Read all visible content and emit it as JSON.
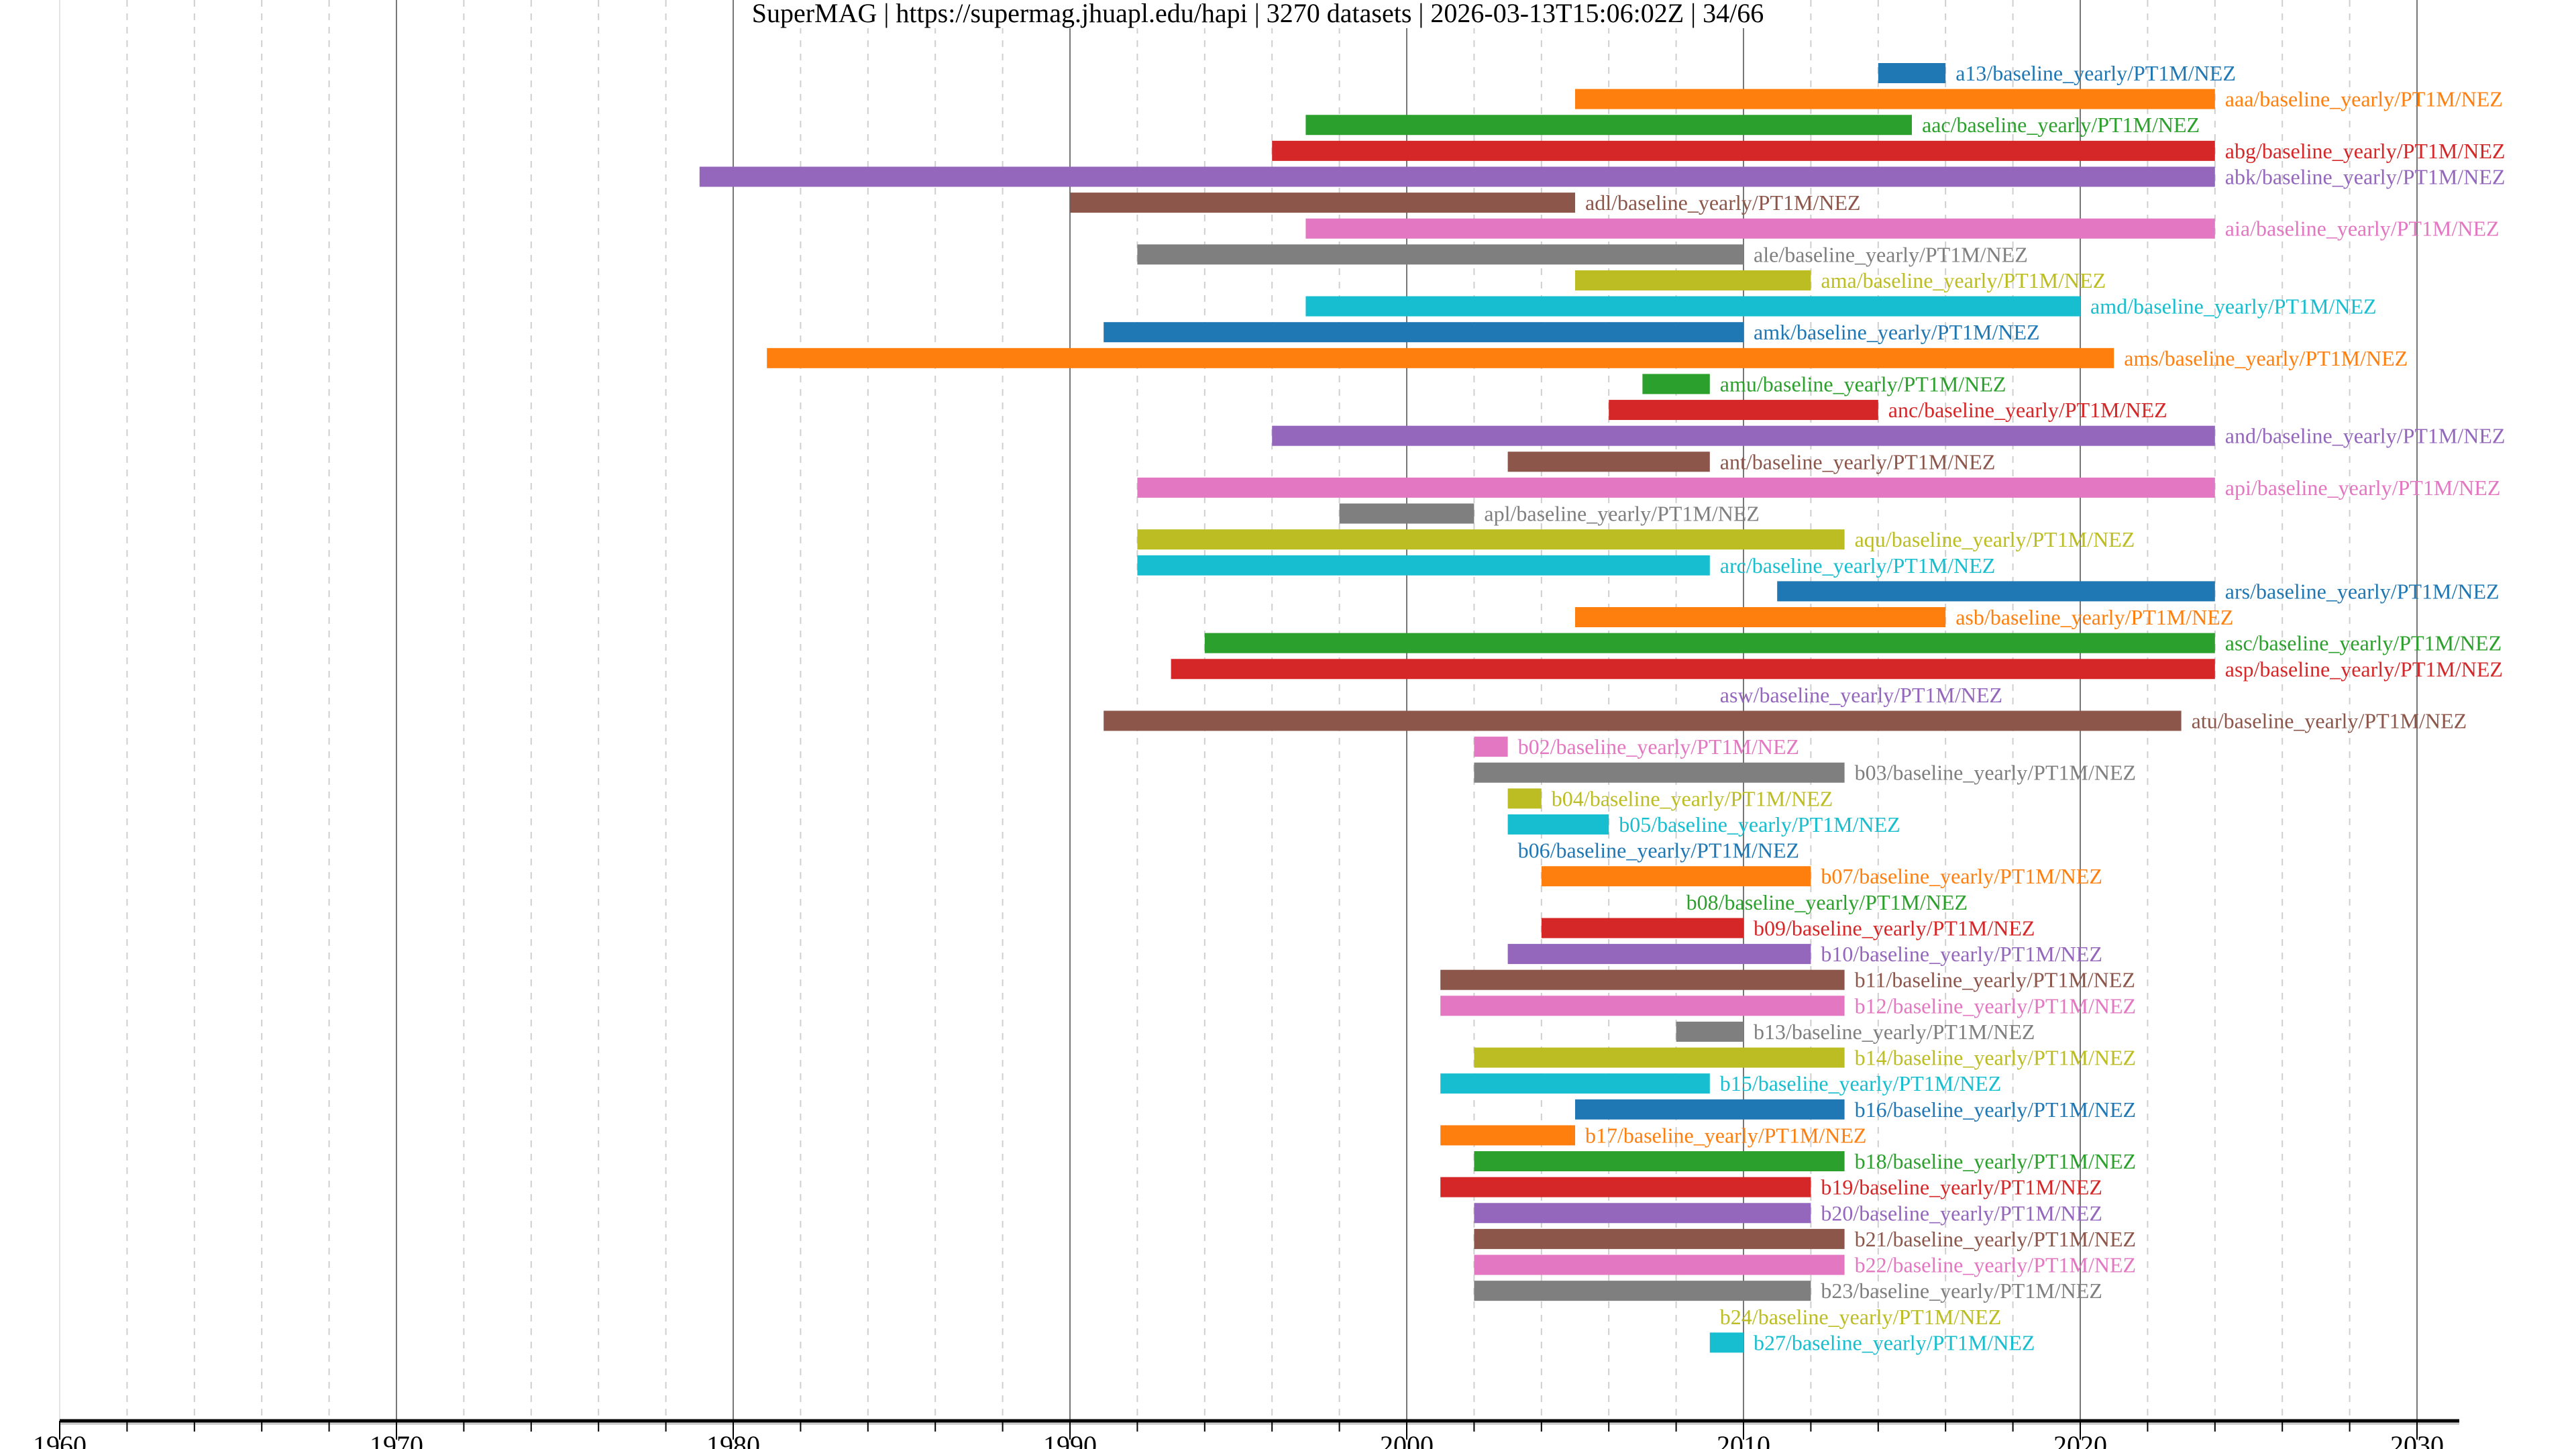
{
  "chart_data": {
    "type": "bar",
    "orientation": "horizontal-range",
    "title": "SuperMAG | https://supermag.jhuapl.edu/hapi | 3270 datasets | 2026-03-13T15:06:02Z | 34/66",
    "xlabel": "",
    "ylabel": "",
    "xlim": [
      1960,
      2031.5
    ],
    "xticks": [
      "1960",
      "1970",
      "1980",
      "1990",
      "2000",
      "2010",
      "2020",
      "2030"
    ],
    "grid": {
      "major": "every 10 years, solid",
      "minor": "every 2 years, dashed"
    },
    "palette": [
      "#1f77b4",
      "#ff7f0e",
      "#2ca02c",
      "#d62728",
      "#9467bd",
      "#8c564b",
      "#e377c2",
      "#7f7f7f",
      "#bcbd22",
      "#17becf"
    ],
    "series": [
      {
        "label": "a13/baseline_yearly/PT1M/NEZ",
        "start": 2014,
        "end": 2016
      },
      {
        "label": "aaa/baseline_yearly/PT1M/NEZ",
        "start": 2005,
        "end": 2024
      },
      {
        "label": "aac/baseline_yearly/PT1M/NEZ",
        "start": 1997,
        "end": 2015
      },
      {
        "label": "abg/baseline_yearly/PT1M/NEZ",
        "start": 1996,
        "end": 2024
      },
      {
        "label": "abk/baseline_yearly/PT1M/NEZ",
        "start": 1979,
        "end": 2024
      },
      {
        "label": "adl/baseline_yearly/PT1M/NEZ",
        "start": 1990,
        "end": 2005
      },
      {
        "label": "aia/baseline_yearly/PT1M/NEZ",
        "start": 1997,
        "end": 2024
      },
      {
        "label": "ale/baseline_yearly/PT1M/NEZ",
        "start": 1992,
        "end": 2010
      },
      {
        "label": "ama/baseline_yearly/PT1M/NEZ",
        "start": 2005,
        "end": 2012
      },
      {
        "label": "amd/baseline_yearly/PT1M/NEZ",
        "start": 1997,
        "end": 2020
      },
      {
        "label": "amk/baseline_yearly/PT1M/NEZ",
        "start": 1991,
        "end": 2010
      },
      {
        "label": "ams/baseline_yearly/PT1M/NEZ",
        "start": 1981,
        "end": 2021
      },
      {
        "label": "amu/baseline_yearly/PT1M/NEZ",
        "start": 2007,
        "end": 2009
      },
      {
        "label": "anc/baseline_yearly/PT1M/NEZ",
        "start": 2006,
        "end": 2014
      },
      {
        "label": "and/baseline_yearly/PT1M/NEZ",
        "start": 1996,
        "end": 2024
      },
      {
        "label": "ant/baseline_yearly/PT1M/NEZ",
        "start": 2003,
        "end": 2009
      },
      {
        "label": "api/baseline_yearly/PT1M/NEZ",
        "start": 1992,
        "end": 2024
      },
      {
        "label": "apl/baseline_yearly/PT1M/NEZ",
        "start": 1998,
        "end": 2002
      },
      {
        "label": "aqu/baseline_yearly/PT1M/NEZ",
        "start": 1992,
        "end": 2013
      },
      {
        "label": "arc/baseline_yearly/PT1M/NEZ",
        "start": 1992,
        "end": 2009
      },
      {
        "label": "ars/baseline_yearly/PT1M/NEZ",
        "start": 2011,
        "end": 2024
      },
      {
        "label": "asb/baseline_yearly/PT1M/NEZ",
        "start": 2005,
        "end": 2016
      },
      {
        "label": "asc/baseline_yearly/PT1M/NEZ",
        "start": 1994,
        "end": 2024
      },
      {
        "label": "asp/baseline_yearly/PT1M/NEZ",
        "start": 1993,
        "end": 2024
      },
      {
        "label": "asw/baseline_yearly/PT1M/NEZ",
        "start": 2009,
        "end": 2009
      },
      {
        "label": "atu/baseline_yearly/PT1M/NEZ",
        "start": 1991,
        "end": 2023
      },
      {
        "label": "b02/baseline_yearly/PT1M/NEZ",
        "start": 2002,
        "end": 2003
      },
      {
        "label": "b03/baseline_yearly/PT1M/NEZ",
        "start": 2002,
        "end": 2013
      },
      {
        "label": "b04/baseline_yearly/PT1M/NEZ",
        "start": 2003,
        "end": 2004
      },
      {
        "label": "b05/baseline_yearly/PT1M/NEZ",
        "start": 2003,
        "end": 2006
      },
      {
        "label": "b06/baseline_yearly/PT1M/NEZ",
        "start": 2003,
        "end": 2003
      },
      {
        "label": "b07/baseline_yearly/PT1M/NEZ",
        "start": 2004,
        "end": 2012
      },
      {
        "label": "b08/baseline_yearly/PT1M/NEZ",
        "start": 2008,
        "end": 2008
      },
      {
        "label": "b09/baseline_yearly/PT1M/NEZ",
        "start": 2004,
        "end": 2010
      },
      {
        "label": "b10/baseline_yearly/PT1M/NEZ",
        "start": 2003,
        "end": 2012
      },
      {
        "label": "b11/baseline_yearly/PT1M/NEZ",
        "start": 2001,
        "end": 2013
      },
      {
        "label": "b12/baseline_yearly/PT1M/NEZ",
        "start": 2001,
        "end": 2013
      },
      {
        "label": "b13/baseline_yearly/PT1M/NEZ",
        "start": 2008,
        "end": 2010
      },
      {
        "label": "b14/baseline_yearly/PT1M/NEZ",
        "start": 2002,
        "end": 2013
      },
      {
        "label": "b15/baseline_yearly/PT1M/NEZ",
        "start": 2001,
        "end": 2009
      },
      {
        "label": "b16/baseline_yearly/PT1M/NEZ",
        "start": 2005,
        "end": 2013
      },
      {
        "label": "b17/baseline_yearly/PT1M/NEZ",
        "start": 2001,
        "end": 2005
      },
      {
        "label": "b18/baseline_yearly/PT1M/NEZ",
        "start": 2002,
        "end": 2013
      },
      {
        "label": "b19/baseline_yearly/PT1M/NEZ",
        "start": 2001,
        "end": 2012
      },
      {
        "label": "b20/baseline_yearly/PT1M/NEZ",
        "start": 2002,
        "end": 2012
      },
      {
        "label": "b21/baseline_yearly/PT1M/NEZ",
        "start": 2002,
        "end": 2013
      },
      {
        "label": "b22/baseline_yearly/PT1M/NEZ",
        "start": 2002,
        "end": 2013
      },
      {
        "label": "b23/baseline_yearly/PT1M/NEZ",
        "start": 2002,
        "end": 2012
      },
      {
        "label": "b24/baseline_yearly/PT1M/NEZ",
        "start": 2009,
        "end": 2009
      },
      {
        "label": "b27/baseline_yearly/PT1M/NEZ",
        "start": 2009,
        "end": 2010
      }
    ]
  }
}
